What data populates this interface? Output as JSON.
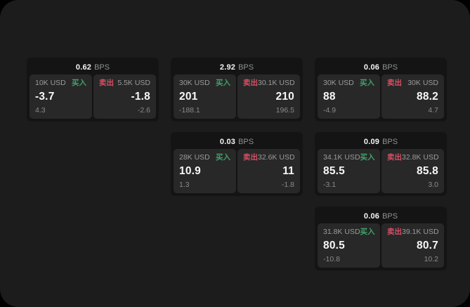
{
  "colors": {
    "buy_green": "#41a169",
    "sell_red": "#d74f66",
    "background": "#1c1c1c",
    "card_background": "#141414",
    "panel_background": "#282828"
  },
  "labels": {
    "bps_unit": "BPS",
    "buy": "买入",
    "sell": "卖出"
  },
  "cards": [
    {
      "row": 1,
      "col": 1,
      "bps": "0.62",
      "buy": {
        "amount": "10K USD",
        "value": "-3.7",
        "sub": "4.3"
      },
      "sell": {
        "amount": "5.5K USD",
        "value": "-1.8",
        "sub": "-2.6"
      }
    },
    {
      "row": 1,
      "col": 2,
      "bps": "2.92",
      "buy": {
        "amount": "30K USD",
        "value": "201",
        "sub": "-188.1"
      },
      "sell": {
        "amount": "30.1K USD",
        "value": "210",
        "sub": "196.5"
      }
    },
    {
      "row": 1,
      "col": 3,
      "bps": "0.06",
      "buy": {
        "amount": "30K USD",
        "value": "88",
        "sub": "-4.9"
      },
      "sell": {
        "amount": "30K USD",
        "value": "88.2",
        "sub": "4.7"
      }
    },
    {
      "row": 2,
      "col": 2,
      "bps": "0.03",
      "buy": {
        "amount": "28K USD",
        "value": "10.9",
        "sub": "1.3"
      },
      "sell": {
        "amount": "32.6K USD",
        "value": "11",
        "sub": "-1.8"
      }
    },
    {
      "row": 2,
      "col": 3,
      "bps": "0.09",
      "buy": {
        "amount": "34.1K USD",
        "value": "85.5",
        "sub": "-3.1"
      },
      "sell": {
        "amount": "32.8K USD",
        "value": "85.8",
        "sub": "3.0"
      }
    },
    {
      "row": 3,
      "col": 3,
      "bps": "0.06",
      "buy": {
        "amount": "31.8K USD",
        "value": "80.5",
        "sub": "-10.8"
      },
      "sell": {
        "amount": "39.1K USD",
        "value": "80.7",
        "sub": "10.2"
      }
    }
  ]
}
